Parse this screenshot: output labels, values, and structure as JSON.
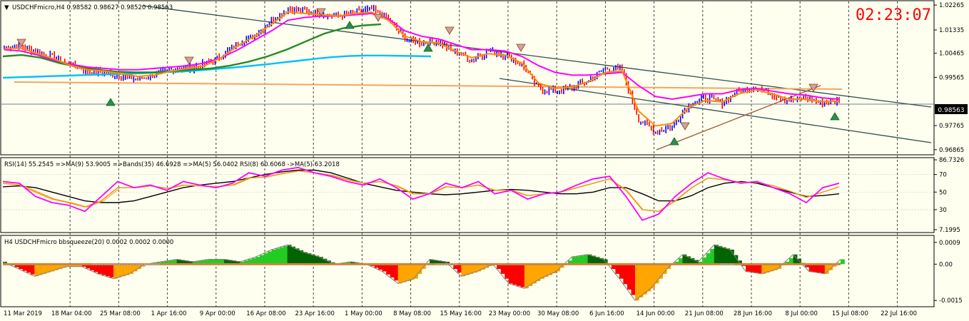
{
  "header": {
    "main_title": "USDCHFmicro,H4  0.98582 0.98627 0.98520 0.98563",
    "clock": "02:23:07",
    "rsi_title": "RSI(14) 55.2545  =>MA(9) 53.9005  =>Bands(35) 46.6928  =>MA(5) 56.0402  RSI(8) 60.6068  ->MA(5) 63.2018",
    "squeeze_title": "H4 USDCHFmicro bbsqueeze(20) 0.0002 0.0002 0.0000"
  },
  "colors": {
    "background": "#fffff0",
    "bull_candle": "#0000ff",
    "bear_candle": "#ff0000",
    "ma_fast": "#ff8c00",
    "ma_slow": "#228b22",
    "ma_long": "#1e90ff",
    "magenta": "#ff00ff",
    "channel": "#2f4f4f",
    "squeeze_pos": "#22cc22",
    "squeeze_neg": "#ffa500"
  },
  "chart_data": [
    {
      "type": "line",
      "panel": "price",
      "symbol": "USDCHFmicro",
      "timeframe": "H4",
      "ohlc": {
        "open": 0.98582,
        "high": 0.98627,
        "low": 0.9852,
        "close": 0.98563
      },
      "y_ticks": [
        1.02265,
        1.01335,
        1.00465,
        0.99565,
        0.97765,
        0.96865
      ],
      "current_price": "0.98563",
      "ylim": [
        0.967,
        1.024
      ],
      "x_ticks": [
        "11 Mar 2019",
        "18 Mar 04:00",
        "25 Mar 08:00",
        "1 Apr 16:00",
        "9 Apr 00:00",
        "16 Apr 08:00",
        "23 Apr 16:00",
        "1 May 00:00",
        "8 May 08:00",
        "15 May 16:00",
        "23 May 00:00",
        "30 May 08:00",
        "6 Jun 16:00",
        "14 Jun 00:00",
        "21 Jun 08:00",
        "28 Jun 16:00",
        "8 Jul 00:00",
        "15 Jul 08:00",
        "22 Jul 16:00"
      ],
      "series": [
        {
          "key": "price",
          "values": [
            1.007,
            1.0075,
            1.005,
            1.003,
            1.0005,
            0.998,
            0.9975,
            0.996,
            0.995,
            0.9965,
            0.9985,
            0.999,
            1.0005,
            1.0035,
            1.0085,
            1.0115,
            1.0165,
            1.0215,
            1.0205,
            1.0195,
            1.0185,
            1.02,
            1.021,
            1.0175,
            1.01,
            1.0085,
            1.009,
            1.005,
            1.0025,
            1.0055,
            1.004,
            1.0005,
            0.9915,
            0.9905,
            0.992,
            0.9945,
            0.999,
            0.9985,
            0.98,
            0.9755,
            0.9775,
            0.9855,
            0.988,
            0.986,
            0.9905,
            0.992,
            0.9895,
            0.987,
            0.988,
            0.986,
            0.987
          ]
        },
        {
          "key": "ma_fast",
          "values": [
            1.0065,
            1.0065,
            1.0045,
            1.0025,
            1.0,
            0.9985,
            0.998,
            0.997,
            0.996,
            0.9965,
            0.998,
            0.999,
            1.0,
            1.003,
            1.0075,
            1.011,
            1.0155,
            1.02,
            1.0195,
            1.019,
            1.0185,
            1.0195,
            1.02,
            1.017,
            1.011,
            1.009,
            1.0085,
            1.0055,
            1.003,
            1.0045,
            1.004,
            1.001,
            0.9935,
            0.9915,
            0.992,
            0.994,
            0.9975,
            0.998,
            0.983,
            0.9775,
            0.9785,
            0.9845,
            0.987,
            0.9865,
            0.9895,
            0.991,
            0.9895,
            0.9875,
            0.9875,
            0.9865,
            0.9868
          ]
        },
        {
          "key": "ma_long_blue",
          "values": [
            0.9955,
            0.9957,
            0.9959,
            0.9961,
            0.9963,
            0.9965,
            0.9967,
            0.9969,
            0.9971,
            0.9973,
            0.9976,
            0.9979,
            0.9983,
            0.9988,
            0.9993,
            0.9999,
            1.0005,
            1.0012,
            1.0019,
            1.0026,
            1.0032,
            1.0036,
            1.0038,
            1.0038,
            1.0037,
            1.0036,
            1.0035
          ]
        },
        {
          "key": "ma_slow_green",
          "values": [
            1.0035,
            1.004,
            1.003,
            1.001,
            0.9995,
            0.9985,
            0.9978,
            0.9975,
            0.9975,
            0.998,
            0.9985,
            0.999,
            1.0,
            1.0015,
            1.0035,
            1.006,
            1.009,
            1.012,
            1.014,
            1.015,
            1.0155
          ]
        },
        {
          "key": "magenta",
          "values": [
            1.006,
            1.0055,
            1.004,
            1.002,
            1.0005,
            0.9995,
            0.999,
            0.9985,
            0.9985,
            0.999,
            0.9995,
            1.0,
            1.001,
            1.003,
            1.006,
            1.0095,
            1.013,
            1.017,
            1.018,
            1.0185,
            1.0185,
            1.019,
            1.0195,
            1.0175,
            1.013,
            1.011,
            1.01,
            1.008,
            1.006,
            1.006,
            1.0055,
            1.0035,
            1.0,
            0.9975,
            0.9965,
            0.9965,
            0.997,
            0.9975,
            0.9925,
            0.9885,
            0.9875,
            0.9885,
            0.9895,
            0.9895,
            0.991,
            0.9915,
            0.9905,
            0.9895,
            0.989,
            0.988,
            0.9875
          ]
        }
      ]
    },
    {
      "type": "line",
      "panel": "rsi",
      "y_ticks": [
        86.7326,
        70,
        50,
        30,
        7.1995
      ],
      "ylim": [
        7.1995,
        86.7326
      ],
      "series": [
        {
          "key": "rsi",
          "values": [
            62,
            60,
            45,
            38,
            35,
            28,
            45,
            62,
            55,
            58,
            52,
            62,
            58,
            55,
            60,
            72,
            68,
            75,
            78,
            72,
            68,
            62,
            58,
            65,
            55,
            42,
            48,
            60,
            55,
            62,
            48,
            52,
            42,
            48,
            50,
            58,
            65,
            68,
            45,
            18,
            25,
            45,
            60,
            72,
            65,
            60,
            62,
            55,
            48,
            38,
            55,
            60
          ]
        },
        {
          "key": "rsi_ma",
          "values": [
            60,
            58,
            50,
            42,
            38,
            33,
            40,
            55,
            55,
            57,
            54,
            58,
            57,
            56,
            58,
            66,
            67,
            71,
            74,
            72,
            69,
            64,
            60,
            62,
            57,
            48,
            48,
            56,
            55,
            58,
            52,
            52,
            46,
            48,
            50,
            55,
            60,
            65,
            52,
            30,
            28,
            40,
            55,
            66,
            64,
            61,
            61,
            57,
            51,
            44,
            50,
            56
          ]
        },
        {
          "key": "rsi_bands_black",
          "values": [
            56,
            57,
            55,
            50,
            45,
            40,
            38,
            38,
            40,
            45,
            50,
            55,
            58,
            60,
            62,
            66,
            70,
            73,
            75,
            75,
            72,
            66,
            60,
            56,
            52,
            50,
            48,
            47,
            48,
            50,
            52,
            53,
            52,
            50,
            48,
            48,
            50,
            55,
            55,
            48,
            40,
            40,
            46,
            55,
            60,
            62,
            60,
            55,
            50,
            45,
            46,
            48
          ]
        }
      ]
    },
    {
      "type": "bar",
      "panel": "bbsqueeze",
      "y_ticks": [
        0.0009,
        0.0,
        -0.0015
      ],
      "ylim": [
        -0.0017,
        0.0011
      ],
      "values": [
        0.0001,
        -0.0002,
        -0.0005,
        -0.0003,
        -0.0001,
        -0.0001,
        -0.0004,
        -0.0006,
        -0.0004,
        0.0,
        0.0001,
        0.0002,
        0.0001,
        0.0002,
        0.0002,
        0.0001,
        0.0003,
        0.0006,
        0.0008,
        0.0005,
        0.0003,
        0.0,
        0.0001,
        0.0,
        -0.0003,
        -0.0008,
        -0.0006,
        0.0002,
        0.0001,
        -0.0005,
        -0.0003,
        0.0,
        -0.0008,
        -0.001,
        -0.0006,
        -0.0003,
        0.0003,
        0.0004,
        0.0002,
        -0.0006,
        -0.0015,
        -0.001,
        -0.0002,
        0.0004,
        0.0001,
        0.0008,
        0.0006,
        -0.0003,
        -0.0004,
        -0.0002,
        0.0004,
        -0.0003,
        -0.0004,
        0.0002
      ]
    }
  ]
}
